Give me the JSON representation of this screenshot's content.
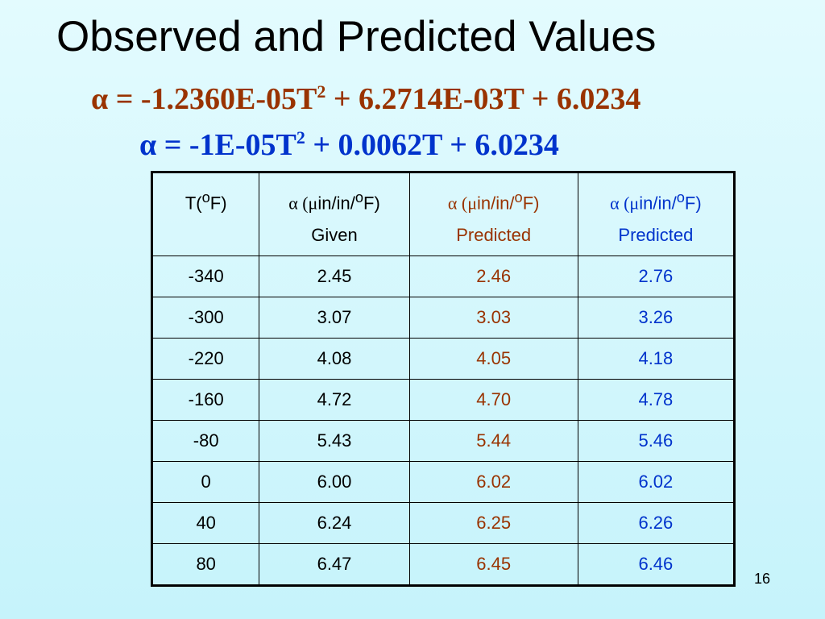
{
  "slide": {
    "title": "Observed and Predicted Values",
    "number": "16"
  },
  "equations": [
    {
      "lead": "α = -1.2360E-05T",
      "exponent": "2",
      "tail": " + 6.2714E-03T + 6.0234",
      "color": "#993300"
    },
    {
      "lead": "α = -1E-05T",
      "exponent": "2",
      "tail": " + 0.0062T + 6.0234",
      "color": "#0033cc"
    }
  ],
  "table": {
    "colors": {
      "given": "#000000",
      "predicted_1": "#993300",
      "predicted_2": "#0033cc"
    },
    "headers": [
      {
        "prefix": "T(",
        "sup": "o",
        "suffix": "F)",
        "sub_label": ""
      },
      {
        "greek": "α (μ",
        "unit": "in/in/",
        "sup": "o",
        "suffix": "F)",
        "sub_label": "Given"
      },
      {
        "greek": "α (μ",
        "unit": "in/in/",
        "sup": "o",
        "suffix": "F)",
        "sub_label": "Predicted"
      },
      {
        "greek": "α (μ",
        "unit": "in/in/",
        "sup": "o",
        "suffix": "F)",
        "sub_label": "Predicted"
      }
    ],
    "rows": [
      [
        "-340",
        "2.45",
        "2.46",
        "2.76"
      ],
      [
        "-300",
        "3.07",
        "3.03",
        "3.26"
      ],
      [
        "-220",
        "4.08",
        "4.05",
        "4.18"
      ],
      [
        "-160",
        "4.72",
        "4.70",
        "4.78"
      ],
      [
        "-80",
        "5.43",
        "5.44",
        "5.46"
      ],
      [
        "0",
        "6.00",
        "6.02",
        "6.02"
      ],
      [
        "40",
        "6.24",
        "6.25",
        "6.26"
      ],
      [
        "80",
        "6.47",
        "6.45",
        "6.46"
      ]
    ]
  }
}
